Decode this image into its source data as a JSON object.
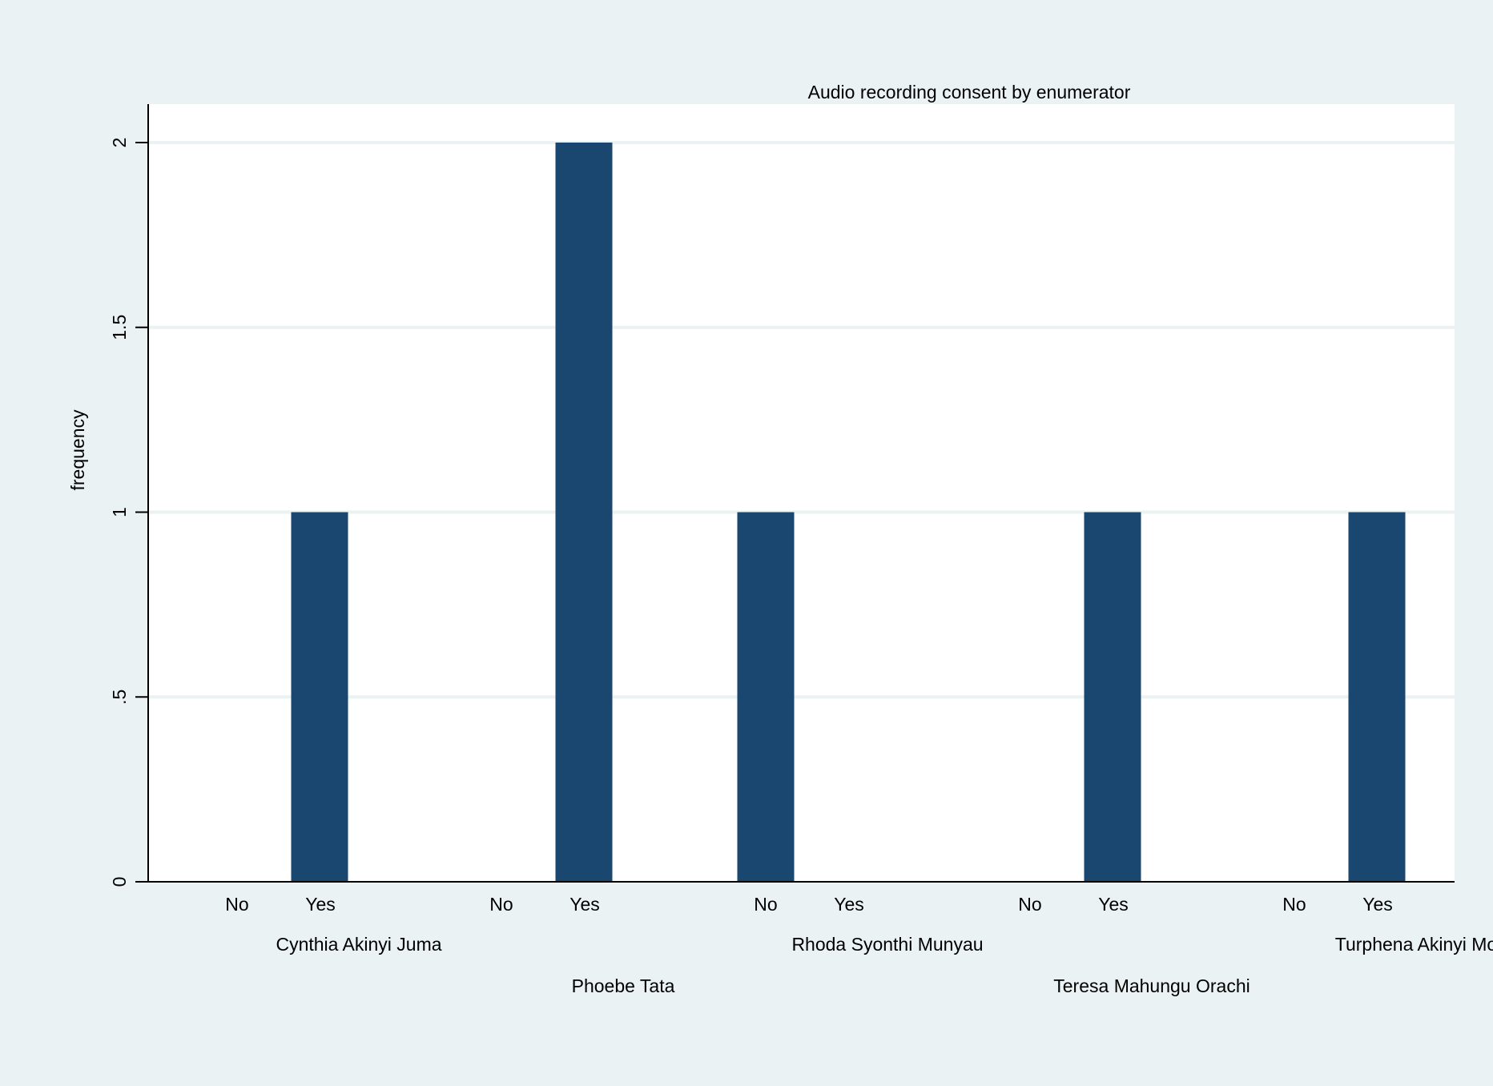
{
  "chart_data": {
    "type": "bar",
    "title": "Audio recording consent by enumerator",
    "xlabel": "",
    "ylabel": "frequency",
    "ylim": [
      0,
      2
    ],
    "yticks": [
      0,
      0.5,
      1,
      1.5,
      2
    ],
    "ytick_labels": [
      "0",
      ".5",
      "1",
      "1.5",
      "2"
    ],
    "grid": true,
    "bar_color": "#1a476f",
    "plot_background": "#ffffff",
    "page_background": "#eaf2f3",
    "gridline_color": "#eaf2f3",
    "groups": [
      {
        "name": "Cynthia Akinyi Juma",
        "categories": [
          "No",
          "Yes"
        ],
        "values": [
          0,
          1
        ]
      },
      {
        "name": "Phoebe Tata",
        "categories": [
          "No",
          "Yes"
        ],
        "values": [
          0,
          2
        ]
      },
      {
        "name": "Rhoda Syonthi Munyau",
        "categories": [
          "No",
          "Yes"
        ],
        "values": [
          1,
          0
        ]
      },
      {
        "name": "Teresa Mahungu Orachi",
        "categories": [
          "No",
          "Yes"
        ],
        "values": [
          0,
          1
        ]
      },
      {
        "name": "Turphena Akinyi Mo",
        "categories": [
          "No",
          "Yes"
        ],
        "values": [
          0,
          1
        ]
      }
    ]
  }
}
